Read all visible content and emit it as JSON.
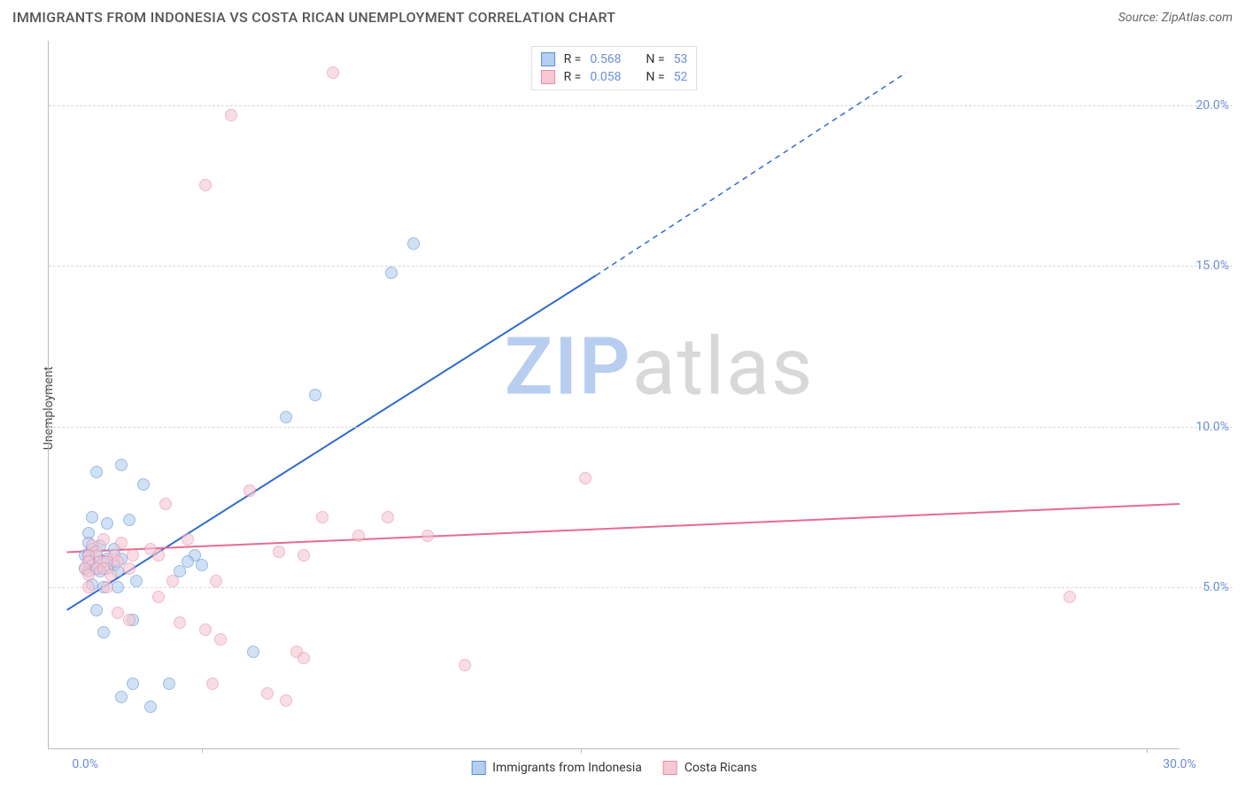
{
  "title": "IMMIGRANTS FROM INDONESIA VS COSTA RICAN UNEMPLOYMENT CORRELATION CHART",
  "source_label": "Source:",
  "source_name": "ZipAtlas.com",
  "ylabel": "Unemployment",
  "watermark_a": "ZIP",
  "watermark_b": "atlas",
  "watermark_color_a": "#b8cef0",
  "watermark_color_b": "#d8d8d8",
  "chart": {
    "type": "scatter",
    "background_color": "#ffffff",
    "grid_color": "#d8d8d8",
    "axis_color": "#bbbbbb",
    "tick_color": "#6a8fd8",
    "xlim": [
      -1,
      30
    ],
    "ylim": [
      0,
      22
    ],
    "xticks": [
      0,
      30
    ],
    "xtick_labels": [
      "0.0%",
      "30.0%"
    ],
    "xtick_minor": [
      3.2,
      13.6,
      29.1
    ],
    "yticks": [
      5,
      10,
      15,
      20
    ],
    "ytick_labels": [
      "5.0%",
      "10.0%",
      "15.0%",
      "20.0%"
    ],
    "series": [
      {
        "name": "Immigrants from Indonesia",
        "fill": "#b3ceef",
        "stroke": "#5b8fd6",
        "line_color": "#2f6bd0",
        "r_value": "0.568",
        "n_value": "53",
        "regression": {
          "x1": -0.5,
          "y1": 4.3,
          "x2_solid": 14.0,
          "y2_solid": 14.7,
          "x2_dash": 22.5,
          "y2_dash": 21.0
        },
        "points": [
          [
            9.0,
            15.7
          ],
          [
            8.4,
            14.8
          ],
          [
            6.3,
            11.0
          ],
          [
            5.5,
            10.3
          ],
          [
            0.3,
            8.6
          ],
          [
            1.0,
            8.8
          ],
          [
            1.6,
            8.2
          ],
          [
            0.2,
            7.2
          ],
          [
            1.2,
            7.1
          ],
          [
            0.6,
            7.0
          ],
          [
            0.1,
            6.7
          ],
          [
            0.1,
            6.4
          ],
          [
            0.4,
            6.3
          ],
          [
            0.8,
            6.2
          ],
          [
            0.2,
            6.2
          ],
          [
            0.0,
            6.0
          ],
          [
            0.1,
            6.0
          ],
          [
            0.3,
            6.0
          ],
          [
            0.6,
            5.9
          ],
          [
            1.0,
            5.9
          ],
          [
            0.1,
            5.8
          ],
          [
            0.5,
            5.8
          ],
          [
            0.2,
            5.7
          ],
          [
            0.8,
            5.7
          ],
          [
            0.0,
            5.6
          ],
          [
            0.3,
            5.6
          ],
          [
            0.6,
            5.6
          ],
          [
            0.1,
            5.5
          ],
          [
            0.4,
            5.5
          ],
          [
            0.9,
            5.5
          ],
          [
            2.6,
            5.5
          ],
          [
            3.0,
            6.0
          ],
          [
            2.8,
            5.8
          ],
          [
            3.2,
            5.7
          ],
          [
            1.4,
            5.2
          ],
          [
            0.2,
            5.1
          ],
          [
            0.5,
            5.0
          ],
          [
            0.9,
            5.0
          ],
          [
            0.3,
            4.3
          ],
          [
            1.3,
            4.0
          ],
          [
            0.5,
            3.6
          ],
          [
            4.6,
            3.0
          ],
          [
            1.3,
            2.0
          ],
          [
            2.3,
            2.0
          ],
          [
            1.0,
            1.6
          ],
          [
            1.8,
            1.3
          ]
        ]
      },
      {
        "name": "Costa Ricans",
        "fill": "#f6c8d3",
        "stroke": "#e98aa6",
        "line_color": "#e86b8f",
        "r_value": "0.058",
        "n_value": "52",
        "regression": {
          "x1": -0.5,
          "y1": 6.1,
          "x2_solid": 30.0,
          "y2_solid": 7.6,
          "x2_dash": 30.0,
          "y2_dash": 7.6
        },
        "points": [
          [
            6.8,
            21.0
          ],
          [
            4.0,
            19.7
          ],
          [
            3.3,
            17.5
          ],
          [
            13.7,
            8.4
          ],
          [
            4.5,
            8.0
          ],
          [
            2.2,
            7.6
          ],
          [
            6.5,
            7.2
          ],
          [
            8.3,
            7.2
          ],
          [
            7.5,
            6.6
          ],
          [
            9.4,
            6.6
          ],
          [
            2.8,
            6.5
          ],
          [
            0.5,
            6.5
          ],
          [
            1.0,
            6.4
          ],
          [
            0.2,
            6.3
          ],
          [
            1.8,
            6.2
          ],
          [
            0.3,
            6.1
          ],
          [
            0.1,
            6.0
          ],
          [
            0.8,
            6.0
          ],
          [
            1.3,
            6.0
          ],
          [
            2.0,
            6.0
          ],
          [
            5.3,
            6.1
          ],
          [
            6.0,
            6.0
          ],
          [
            0.1,
            5.8
          ],
          [
            0.4,
            5.8
          ],
          [
            0.6,
            5.8
          ],
          [
            0.9,
            5.8
          ],
          [
            0.0,
            5.6
          ],
          [
            0.3,
            5.6
          ],
          [
            0.5,
            5.6
          ],
          [
            1.2,
            5.6
          ],
          [
            0.1,
            5.4
          ],
          [
            0.7,
            5.4
          ],
          [
            2.4,
            5.2
          ],
          [
            3.6,
            5.2
          ],
          [
            0.1,
            5.0
          ],
          [
            0.6,
            5.0
          ],
          [
            2.0,
            4.7
          ],
          [
            27.0,
            4.7
          ],
          [
            0.9,
            4.2
          ],
          [
            1.2,
            4.0
          ],
          [
            2.6,
            3.9
          ],
          [
            3.3,
            3.7
          ],
          [
            3.7,
            3.4
          ],
          [
            5.8,
            3.0
          ],
          [
            6.0,
            2.8
          ],
          [
            10.4,
            2.6
          ],
          [
            3.5,
            2.0
          ],
          [
            5.0,
            1.7
          ],
          [
            5.5,
            1.5
          ]
        ]
      }
    ]
  },
  "legend_top": {
    "r_label": "R =",
    "n_label": "N ="
  },
  "legend_bottom_labels": [
    "Immigrants from Indonesia",
    "Costa Ricans"
  ]
}
